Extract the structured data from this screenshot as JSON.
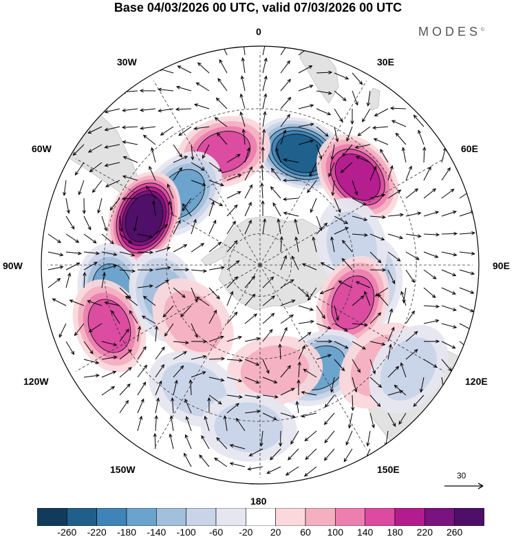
{
  "title": "Base 04/03/2026 00 UTC, valid 07/03/2026 00 UTC",
  "brand": {
    "name": "MODES",
    "mark": "©"
  },
  "longitude_labels": {
    "top": "0",
    "top_right": "30E",
    "right_upper": "60E",
    "right": "90E",
    "right_lower": "120E",
    "bottom_right": "150E",
    "bottom": "180",
    "bottom_left": "150W",
    "left_lower": "120W",
    "left": "90W",
    "left_upper": "60W",
    "top_left": "30W"
  },
  "reference_vector": {
    "label": "30"
  },
  "colorbar": {
    "ticks": [
      "-260",
      "-220",
      "-180",
      "-140",
      "-100",
      "-60",
      "-20",
      "20",
      "60",
      "100",
      "140",
      "180",
      "220",
      "260"
    ],
    "colors": [
      "#123a5a",
      "#1f5f8a",
      "#3e84b8",
      "#6aa3cd",
      "#a2bfdc",
      "#c9d4e8",
      "#e6e6f0",
      "#ffffff",
      "#fad8dc",
      "#f4b0c1",
      "#ec7fb0",
      "#dc4aa1",
      "#b31c8f",
      "#7a1280",
      "#4e0f68"
    ]
  },
  "anomaly_centers": [
    {
      "name": "neg-0e",
      "lon": 20,
      "lat": -52,
      "value": -240
    },
    {
      "name": "pos-40e",
      "lon": 48,
      "lat": -48,
      "value": 180
    },
    {
      "name": "pos-15w",
      "lon": -18,
      "lat": -52,
      "value": 170
    },
    {
      "name": "neg-40w",
      "lon": -48,
      "lat": -56,
      "value": -150
    },
    {
      "name": "pos-65w",
      "lon": -68,
      "lat": -50,
      "value": 270
    },
    {
      "name": "neg-100w",
      "lon": -100,
      "lat": -42,
      "value": -150
    },
    {
      "name": "pos-110w",
      "lon": -112,
      "lat": -38,
      "value": 150
    },
    {
      "name": "neg-100w-b",
      "lon": -108,
      "lat": -58,
      "value": -130
    },
    {
      "name": "neg-90e",
      "lon": 100,
      "lat": -55,
      "value": -110
    },
    {
      "name": "neg-78e",
      "lon": 78,
      "lat": -60,
      "value": -60
    },
    {
      "name": "pos-110e",
      "lon": 112,
      "lat": -58,
      "value": 170
    },
    {
      "name": "neg-150e",
      "lon": 150,
      "lat": -52,
      "value": -150
    },
    {
      "name": "pos-130w",
      "lon": -130,
      "lat": -62,
      "value": 80
    },
    {
      "name": "pos-170e",
      "lon": 172,
      "lat": -56,
      "value": 80
    },
    {
      "name": "neg-150w",
      "lon": -152,
      "lat": -45,
      "value": -60
    },
    {
      "name": "neg-175w",
      "lon": -176,
      "lat": -38,
      "value": -70
    },
    {
      "name": "pos-130e",
      "lon": 130,
      "lat": -40,
      "value": 70
    },
    {
      "name": "neg-125e",
      "lon": 125,
      "lat": -32,
      "value": -60
    }
  ]
}
